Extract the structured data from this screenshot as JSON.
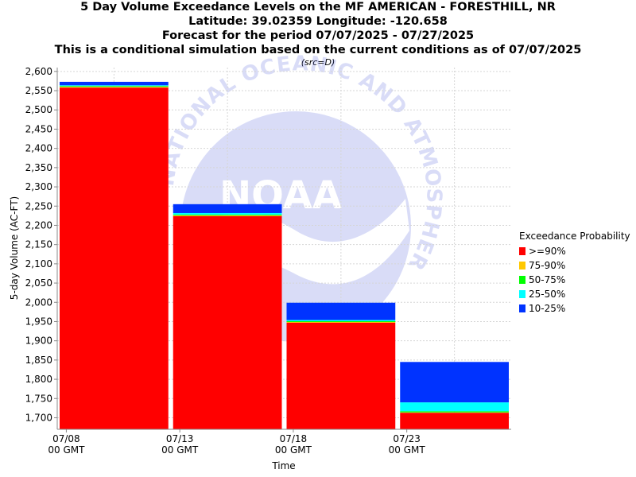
{
  "titles": {
    "line1": "5 Day Volume Exceedance Levels on the MF AMERICAN - FORESTHILL, NR",
    "line2": "Latitude: 39.02359 Longitude: -120.658",
    "line3": "Forecast for the period 07/07/2025 - 07/27/2025",
    "line4": "This is a conditional simulation based on the current conditions as of 07/07/2025",
    "src": "(src=D)"
  },
  "watermark": {
    "text": "NATIONAL OCEANIC AND ATMOSPHERIC ADMINISTRATION",
    "logo_text": "NOAA"
  },
  "legend": {
    "title": "Exceedance Probability",
    "items": [
      {
        "label": ">=90%",
        "color": "#ff0000"
      },
      {
        "label": "75-90%",
        "color": "#ffc800"
      },
      {
        "label": "50-75%",
        "color": "#00ff00"
      },
      {
        "label": "25-50%",
        "color": "#00ffff"
      },
      {
        "label": "10-25%",
        "color": "#0033ff"
      }
    ]
  },
  "chart_data": {
    "type": "bar",
    "stacked": true,
    "xlabel": "Time",
    "ylabel": "5-day Volume (AC-FT)",
    "ylim": [
      1670,
      2610
    ],
    "yticks": [
      "1,700",
      "1,750",
      "1,800",
      "1,850",
      "1,900",
      "1,950",
      "2,000",
      "2,050",
      "2,100",
      "2,150",
      "2,200",
      "2,250",
      "2,300",
      "2,350",
      "2,400",
      "2,450",
      "2,500",
      "2,550",
      "2,600"
    ],
    "ytick_values": [
      1700,
      1750,
      1800,
      1850,
      1900,
      1950,
      2000,
      2050,
      2100,
      2150,
      2200,
      2250,
      2300,
      2350,
      2400,
      2450,
      2500,
      2550,
      2600
    ],
    "xticks": [
      {
        "date": "07/08",
        "sub": "00 GMT"
      },
      {
        "date": "07/13",
        "sub": "00 GMT"
      },
      {
        "date": "07/18",
        "sub": "00 GMT"
      },
      {
        "date": "07/23",
        "sub": "00 GMT"
      }
    ],
    "grid": true,
    "legend_position": "right",
    "bars": [
      {
        "period": "07/08",
        "levels": {
          ">=90%": 2558,
          "75-90%": 2560,
          "50-75%": 2562,
          "25-50%": 2564,
          "10-25%": 2573
        }
      },
      {
        "period": "07/13",
        "levels": {
          ">=90%": 2224,
          "75-90%": 2226,
          "50-75%": 2228,
          "25-50%": 2232,
          "10-25%": 2255
        }
      },
      {
        "period": "07/18",
        "levels": {
          ">=90%": 1947,
          "75-90%": 1949,
          "50-75%": 1951,
          "25-50%": 1954,
          "10-25%": 1999
        }
      },
      {
        "period": "07/23",
        "levels": {
          ">=90%": 1713,
          "75-90%": 1714,
          "50-75%": 1717,
          "25-50%": 1740,
          "10-25%": 1845
        }
      }
    ]
  }
}
